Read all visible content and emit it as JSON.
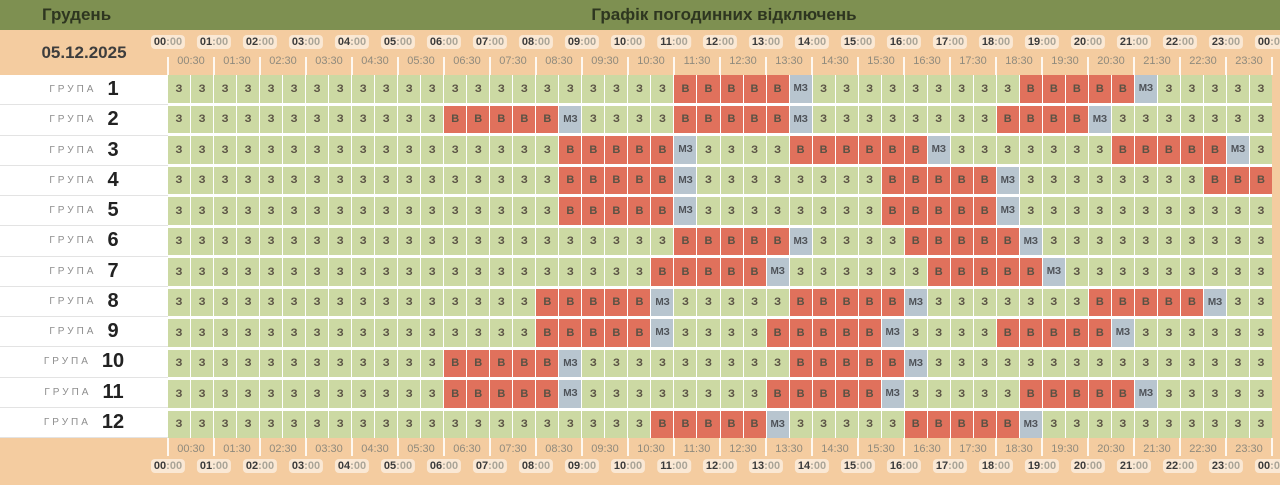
{
  "header": {
    "month": "Грудень",
    "title": "Графік погодинних відключень",
    "date": "05.12.2025"
  },
  "group_label_prefix": "ГРУПА",
  "chart_data": {
    "type": "heatmap",
    "title": "Графік погодинних відключень",
    "date": "05.12.2025",
    "month": "Грудень",
    "x_hour_labels": [
      "00:00",
      "01:00",
      "02:00",
      "03:00",
      "04:00",
      "05:00",
      "06:00",
      "07:00",
      "08:00",
      "09:00",
      "10:00",
      "11:00",
      "12:00",
      "13:00",
      "14:00",
      "15:00",
      "16:00",
      "17:00",
      "18:00",
      "19:00",
      "20:00",
      "21:00",
      "22:00",
      "23:00",
      "00:00"
    ],
    "x_half_hour_labels": [
      "00:30",
      "01:30",
      "02:30",
      "03:30",
      "04:30",
      "05:30",
      "06:30",
      "07:30",
      "08:30",
      "09:30",
      "10:30",
      "11:30",
      "12:30",
      "13:30",
      "14:30",
      "15:30",
      "16:30",
      "17:30",
      "18:30",
      "19:30",
      "20:30",
      "21:30",
      "22:30",
      "23:30"
    ],
    "state_colors": {
      "З": "#ccd9a3",
      "В": "#e0715c",
      "МЗ": "#b8c5cf"
    },
    "groups": [
      {
        "number": "1",
        "cells": "З З З З З З З З З З З З З З З З З З З З З З В В В В В МЗ З З З З З З З З З В В В В В МЗ З З З З З"
      },
      {
        "number": "2",
        "cells": "З З З З З З З З З З З З В В В В В МЗ З З З З В В В В В МЗ З З З З З З З З В В В В МЗ З З З З З З З"
      },
      {
        "number": "3",
        "cells": "З З З З З З З З З З З З З З З З З В В В В В МЗ З З З З В В В В В В МЗ З З З З З З З В В В В В МЗ З"
      },
      {
        "number": "4",
        "cells": "З З З З З З З З З З З З З З З З З В В В В В МЗ З З З З З З З З В В В В В МЗ З З З З З З З З В В В"
      },
      {
        "number": "5",
        "cells": "З З З З З З З З З З З З З З З З З В В В В В МЗ З З З З З З З З В В В В В МЗ З З З З З З З З З З З"
      },
      {
        "number": "6",
        "cells": "З З З З З З З З З З З З З З З З З З З З З З В В В В В МЗ З З З З В В В В В МЗ З З З З З З З З З З"
      },
      {
        "number": "7",
        "cells": "З З З З З З З З З З З З З З З З З З З З З В В В В В МЗ З З З З З З В В В В В МЗ З З З З З З З З З"
      },
      {
        "number": "8",
        "cells": "З З З З З З З З З З З З З З З З В В В В В МЗ З З З З З В В В В В МЗ З З З З З З З В В В В В МЗ З З"
      },
      {
        "number": "9",
        "cells": "З З З З З З З З З З З З З З З З В В В В В МЗ З З З З В В В В В МЗ З З З З В В В В В МЗ З З З З З З"
      },
      {
        "number": "10",
        "cells": "З З З З З З З З З З З З В В В В В МЗ З З З З З З З З З В В В В В МЗ З З З З З З З З З З З З З З З"
      },
      {
        "number": "11",
        "cells": "З З З З З З З З З З З З В В В В В МЗ З З З З З З З З В В В В В МЗ З З З З З В В В В В МЗ З З З З З"
      },
      {
        "number": "12",
        "cells": "З З З З З З З З З З З З З З З З З З З З З В В В В В МЗ З З З З З В В В В В МЗ З З З З З З З З З З"
      }
    ]
  },
  "colors": {
    "header_bar": "#7e9051",
    "band": "#f4cca0",
    "powered_cell": "#ccd9a3",
    "outage_cell": "#e0715c",
    "maybe_cell": "#b8c5cf"
  }
}
